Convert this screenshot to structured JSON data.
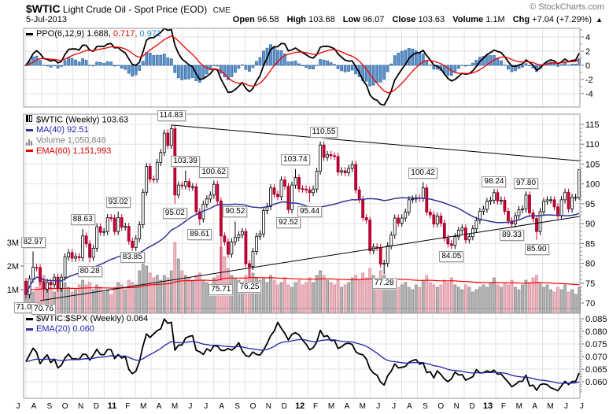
{
  "header": {
    "symbol": "$WTIC",
    "title": "Light Crude Oil - Spot Price (EOD)",
    "exchange": "CME",
    "source": "© StockCharts.com",
    "date": "5-Jul-2013",
    "quote": {
      "open_label": "Open",
      "open": "96.58",
      "high_label": "High",
      "high": "103.68",
      "low_label": "Low",
      "low": "96.07",
      "close_label": "Close",
      "close": "103.63",
      "volume_label": "Volume",
      "volume": "1.1M",
      "chg_label": "Chg",
      "chg": "+7.04 (+7.29%)",
      "chg_up_icon": "▲"
    }
  },
  "ppo_panel": {
    "legend": "PPO(6,12,9)",
    "value_main": "1.688,",
    "value_signal": "0.717,",
    "value_hist": "0.971",
    "axis_ticks": [
      4,
      2,
      0,
      -2,
      -4
    ]
  },
  "main_panel": {
    "legend_symbol": "$WTIC (Weekly)",
    "legend_close": "103.63",
    "ma_label": "MA(40)",
    "ma_value": "92.51",
    "volume_label": "Volume",
    "volume_value": "1,050,846",
    "ema_label": "EMA(60)",
    "ema_value": "1,151,993",
    "axis_ticks": [
      115,
      110,
      105,
      100,
      95,
      90,
      85,
      80,
      75,
      70
    ],
    "volume_ticks": [
      "3M",
      "2M",
      "1M"
    ]
  },
  "ratio_panel": {
    "legend": "$WTIC:$SPX (Weekly)",
    "legend_value": "0.064",
    "ema_label": "EMA(20)",
    "ema_value": "0.060",
    "axis_ticks": [
      "0.085",
      "0.080",
      "0.075",
      "0.070",
      "0.065",
      "0.060"
    ]
  },
  "x_axis": {
    "labels": [
      "J",
      "A",
      "S",
      "O",
      "N",
      "D",
      "11",
      "F",
      "M",
      "A",
      "M",
      "J",
      "J",
      "A",
      "S",
      "O",
      "N",
      "D",
      "12",
      "F",
      "M",
      "A",
      "M",
      "J",
      "J",
      "A",
      "S",
      "O",
      "N",
      "D",
      "13",
      "F",
      "M",
      "A",
      "M",
      "J",
      "J"
    ]
  },
  "colors": {
    "candle_up_fill": "#ffffff",
    "candle_up_stroke": "#000000",
    "candle_down_fill": "#cc0033",
    "candle_down_stroke": "#990026",
    "vol_up_fill": "#b5b5b5",
    "vol_up_stroke": "#8a8a8a",
    "vol_down_fill": "#f0b6c0",
    "vol_down_stroke": "#d58a9a",
    "hist_fill": "#5b94cf",
    "hist_stroke": "#3c6fa5",
    "ppo_line": "#000000",
    "ppo_signal": "#ee0000",
    "ma40": "#333399",
    "vol_ema": "#ff0000",
    "ratio_line": "#000000",
    "ratio_ema": "#2222aa",
    "grid": "#e2e2e2",
    "panel_border": "#999999"
  },
  "chart_data": {
    "type": "candlestick",
    "timeframe": "weekly",
    "x_range": "Jul-2010 to Jul-2013",
    "price_axis": {
      "min": 70,
      "max": 115,
      "tick_step": 5
    },
    "ppo_axis": {
      "min": -4,
      "max": 4,
      "tick_step": 2
    },
    "ratio_axis": {
      "min": 0.06,
      "max": 0.085,
      "tick_step": 0.005
    },
    "indicators": {
      "ppo": "PPO(6,12,9)",
      "ma": "MA(40)",
      "vol_ema": "EMA(60)",
      "ratio_ema": "EMA(20)"
    },
    "first_open": 75.5,
    "last_candle": {
      "open": 96.58,
      "high": 103.68,
      "low": 96.07,
      "close": 103.63
    },
    "closes": [
      72.1,
      76.1,
      79.0,
      78.9,
      75.4,
      73.5,
      75.2,
      74.6,
      76.5,
      73.7,
      76.5,
      81.6,
      82.7,
      81.3,
      81.7,
      81.4,
      86.9,
      84.9,
      81.5,
      83.8,
      89.2,
      87.8,
      88.0,
      91.5,
      91.4,
      88.0,
      91.5,
      89.1,
      89.3,
      85.6,
      84.0,
      86.2,
      89.7,
      97.9,
      104.4,
      101.2,
      101.1,
      105.4,
      107.9,
      112.8,
      109.7,
      113.9,
      97.2,
      99.7,
      99.5,
      100.6,
      99.2,
      99.3,
      93.0,
      91.2,
      94.9,
      96.2,
      97.2,
      99.9,
      95.7,
      86.9,
      85.4,
      82.3,
      85.4,
      86.5,
      87.2,
      88.0,
      79.9,
      79.2,
      83.0,
      86.8,
      87.4,
      93.3,
      94.3,
      99.0,
      97.4,
      96.8,
      101.0,
      99.4,
      93.5,
      99.7,
      101.6,
      98.8,
      98.7,
      98.5,
      97.8,
      98.7,
      103.2,
      109.8,
      106.7,
      107.4,
      107.1,
      106.9,
      103.0,
      103.3,
      102.8,
      103.9,
      104.9,
      98.5,
      96.1,
      91.5,
      90.9,
      83.2,
      84.1,
      84.0,
      79.8,
      80.0,
      84.4,
      87.1,
      91.4,
      90.1,
      91.4,
      92.9,
      96.0,
      96.2,
      96.5,
      96.4,
      99.0,
      92.9,
      92.2,
      89.9,
      91.9,
      90.1,
      86.3,
      84.9,
      84.5,
      86.7,
      88.3,
      88.9,
      85.9,
      86.7,
      88.7,
      90.8,
      93.1,
      93.6,
      95.6,
      95.9,
      97.8,
      95.7,
      95.9,
      93.1,
      90.7,
      89.9,
      92.0,
      93.5,
      93.7,
      97.2,
      92.7,
      91.3,
      88.0,
      93.0,
      95.6,
      96.0,
      96.0,
      94.2,
      92.0,
      96.0,
      97.9,
      93.7,
      96.6,
      96.6,
      103.63
    ],
    "volumes_millions": [
      1.0,
      1.2,
      0.9,
      1.1,
      1.4,
      1.6,
      1.3,
      1.1,
      0.9,
      1.2,
      1.0,
      1.3,
      1.1,
      0.9,
      1.0,
      1.2,
      1.4,
      1.2,
      1.3,
      1.0,
      1.2,
      1.1,
      0.9,
      1.0,
      0.8,
      1.1,
      1.3,
      1.2,
      1.0,
      1.4,
      1.3,
      1.2,
      1.8,
      2.2,
      2.0,
      1.7,
      1.5,
      1.6,
      1.4,
      1.6,
      1.5,
      1.8,
      3.0,
      2.3,
      1.8,
      1.6,
      1.5,
      1.4,
      1.6,
      1.7,
      1.4,
      1.3,
      1.2,
      1.5,
      1.6,
      2.8,
      2.4,
      1.9,
      1.6,
      1.5,
      1.4,
      1.3,
      1.6,
      2.0,
      1.7,
      1.5,
      1.4,
      1.5,
      1.3,
      1.6,
      1.4,
      1.2,
      1.3,
      1.5,
      1.2,
      1.1,
      1.3,
      1.4,
      1.2,
      1.3,
      1.5,
      1.3,
      1.6,
      1.8,
      1.6,
      1.4,
      1.3,
      1.2,
      1.4,
      1.1,
      1.2,
      1.3,
      1.5,
      1.6,
      1.4,
      1.7,
      1.5,
      1.9,
      1.6,
      1.4,
      1.8,
      1.6,
      1.3,
      1.2,
      1.4,
      1.1,
      1.2,
      1.3,
      1.1,
      1.0,
      1.2,
      1.1,
      1.4,
      1.6,
      1.3,
      1.2,
      1.1,
      1.2,
      1.4,
      1.3,
      1.5,
      1.2,
      1.1,
      1.0,
      1.2,
      1.1,
      0.9,
      1.0,
      1.1,
      1.2,
      1.1,
      1.3,
      1.5,
      1.2,
      1.1,
      1.3,
      1.2,
      1.4,
      1.1,
      1.0,
      1.2,
      1.4,
      1.3,
      1.5,
      1.6,
      1.3,
      1.1,
      1.2,
      1.0,
      0.9,
      1.1,
      1.0,
      1.2,
      0.9,
      1.0,
      0.8,
      1.1
    ],
    "ratio_values": [
      0.068,
      0.0706,
      0.0733,
      0.0717,
      0.0672,
      0.0691,
      0.0707,
      0.0676,
      0.069,
      0.0655,
      0.0666,
      0.0694,
      0.071,
      0.0691,
      0.0691,
      0.0688,
      0.0709,
      0.0708,
      0.0686,
      0.0705,
      0.0729,
      0.0708,
      0.0707,
      0.0728,
      0.0727,
      0.0692,
      0.0708,
      0.0694,
      0.07,
      0.0649,
      0.0632,
      0.0642,
      0.068,
      0.0742,
      0.079,
      0.0776,
      0.079,
      0.0803,
      0.081,
      0.0849,
      0.0832,
      0.0836,
      0.0725,
      0.0745,
      0.0746,
      0.0773,
      0.078,
      0.0783,
      0.0725,
      0.0719,
      0.0708,
      0.0731,
      0.0722,
      0.0743,
      0.0741,
      0.0724,
      0.0724,
      0.0732,
      0.0725,
      0.0736,
      0.0755,
      0.0723,
      0.0703,
      0.07,
      0.0718,
      0.0708,
      0.0706,
      0.0726,
      0.0752,
      0.0783,
      0.0801,
      0.0836,
      0.0812,
      0.0792,
      0.0766,
      0.0788,
      0.0795,
      0.0786,
      0.0766,
      0.0749,
      0.0727,
      0.0735,
      0.0758,
      0.0804,
      0.0779,
      0.0783,
      0.0763,
      0.0765,
      0.0732,
      0.0739,
      0.075,
      0.0753,
      0.0748,
      0.0719,
      0.071,
      0.0707,
      0.069,
      0.0651,
      0.0634,
      0.0626,
      0.0598,
      0.0587,
      0.0623,
      0.0642,
      0.0671,
      0.0655,
      0.0657,
      0.0661,
      0.0677,
      0.0684,
      0.0688,
      0.067,
      0.0675,
      0.0636,
      0.064,
      0.0615,
      0.0643,
      0.0629,
      0.0611,
      0.06,
      0.0612,
      0.0638,
      0.0627,
      0.0628,
      0.0606,
      0.0613,
      0.062,
      0.0648,
      0.0635,
      0.0636,
      0.0643,
      0.0638,
      0.0646,
      0.063,
      0.0631,
      0.0614,
      0.0598,
      0.058,
      0.0589,
      0.0601,
      0.0602,
      0.0626,
      0.0583,
      0.0587,
      0.0566,
      0.0588,
      0.0592,
      0.0588,
      0.0576,
      0.0571,
      0.0564,
      0.0584,
      0.0602,
      0.0589,
      0.0601,
      0.0601,
      0.0635
    ],
    "annotations": [
      {
        "label": "71.09",
        "price": 71.09,
        "week": 0,
        "side": "below"
      },
      {
        "label": "82.97",
        "price": 82.97,
        "week": 2,
        "side": "above"
      },
      {
        "label": "70.76",
        "price": 70.76,
        "week": 5,
        "side": "below"
      },
      {
        "label": "88.63",
        "price": 88.63,
        "week": 16,
        "side": "above"
      },
      {
        "label": "80.28",
        "price": 80.28,
        "week": 18,
        "side": "below"
      },
      {
        "label": "93.02",
        "price": 93.02,
        "week": 26,
        "side": "above"
      },
      {
        "label": "83.85",
        "price": 83.85,
        "week": 30,
        "side": "below"
      },
      {
        "label": "114.83",
        "price": 114.83,
        "week": 41,
        "side": "above"
      },
      {
        "label": "95.02",
        "price": 95.02,
        "week": 42,
        "side": "below"
      },
      {
        "label": "103.39",
        "price": 103.39,
        "week": 45,
        "side": "above"
      },
      {
        "label": "89.61",
        "price": 89.61,
        "week": 49,
        "side": "below"
      },
      {
        "label": "100.62",
        "price": 100.62,
        "week": 53,
        "side": "above"
      },
      {
        "label": "75.71",
        "price": 75.71,
        "week": 55,
        "side": "below"
      },
      {
        "label": "90.52",
        "price": 90.52,
        "week": 59,
        "side": "above"
      },
      {
        "label": "76.25",
        "price": 76.25,
        "week": 63,
        "side": "below"
      },
      {
        "label": "92.52",
        "price": 92.52,
        "week": 74,
        "side": "below"
      },
      {
        "label": "103.74",
        "price": 103.74,
        "week": 76,
        "side": "above"
      },
      {
        "label": "95.44",
        "price": 95.44,
        "week": 80,
        "side": "below"
      },
      {
        "label": "110.55",
        "price": 110.55,
        "week": 84,
        "side": "above"
      },
      {
        "label": "77.28",
        "price": 77.28,
        "week": 101,
        "side": "below"
      },
      {
        "label": "100.42",
        "price": 100.42,
        "week": 112,
        "side": "above"
      },
      {
        "label": "84.05",
        "price": 84.05,
        "week": 120,
        "side": "below"
      },
      {
        "label": "98.24",
        "price": 98.24,
        "week": 132,
        "side": "above"
      },
      {
        "label": "89.33",
        "price": 89.33,
        "week": 137,
        "side": "below"
      },
      {
        "label": "97.80",
        "price": 97.8,
        "week": 141,
        "side": "above"
      },
      {
        "label": "85.90",
        "price": 85.9,
        "week": 144,
        "side": "below"
      }
    ],
    "trendlines": [
      {
        "name": "descending-resistance",
        "from_week": 41,
        "from_price": 114.83,
        "to_week": 156,
        "to_price": 105.8
      },
      {
        "name": "ascending-support",
        "from_week": 4,
        "from_price": 70.6,
        "to_week": 156,
        "to_price": 91.8
      }
    ]
  }
}
